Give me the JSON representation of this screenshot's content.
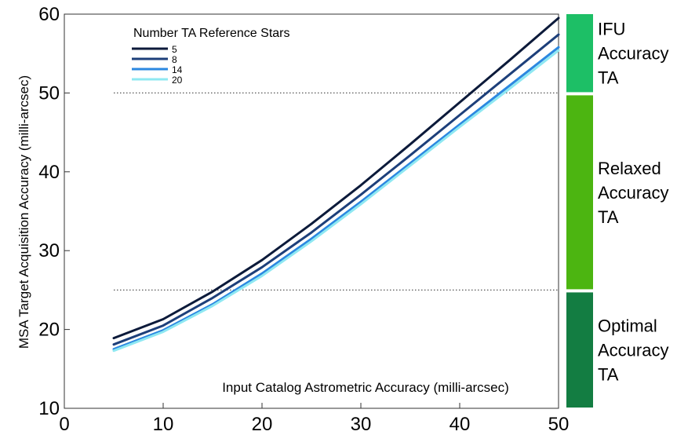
{
  "chart_data": {
    "type": "line",
    "xlabel": "Input Catalog Astrometric Accuracy (milli-arcsec)",
    "ylabel": "MSA Target Acquisition Accuracy (milli-arcsec)",
    "xlim": [
      0,
      50
    ],
    "ylim": [
      10,
      60
    ],
    "xticks": [
      0,
      10,
      20,
      30,
      40,
      50
    ],
    "yticks": [
      10,
      20,
      30,
      40,
      50,
      60
    ],
    "grid": false,
    "legend_title": "Number TA Reference Stars",
    "legend_position": "top-left",
    "x": [
      5,
      10,
      15,
      20,
      25,
      30,
      35,
      40,
      45,
      50
    ],
    "series": [
      {
        "name": "5",
        "color": "#0c1a3a",
        "values": [
          18.9,
          21.3,
          24.8,
          28.8,
          33.4,
          38.3,
          43.5,
          48.8,
          54.1,
          59.5
        ]
      },
      {
        "name": "8",
        "color": "#1d3f7a",
        "values": [
          18.1,
          20.5,
          24.0,
          27.9,
          32.3,
          37.1,
          42.1,
          47.2,
          52.3,
          57.4
        ]
      },
      {
        "name": "14",
        "color": "#2b88e0",
        "values": [
          17.5,
          19.9,
          23.2,
          27.1,
          31.5,
          36.2,
          41.1,
          46.0,
          50.9,
          55.8
        ]
      },
      {
        "name": "20",
        "color": "#8fe8f2",
        "values": [
          17.3,
          19.7,
          23.0,
          26.8,
          31.2,
          35.9,
          40.8,
          45.7,
          50.5,
          55.4
        ]
      }
    ],
    "reference_lines": [
      {
        "y": 50,
        "style": "dotted"
      },
      {
        "y": 25,
        "style": "dotted"
      }
    ],
    "bands": [
      {
        "lines": [
          "IFU",
          "Accuracy",
          "TA"
        ],
        "color": "#1dbf66",
        "y_from": 50,
        "y_to": 60
      },
      {
        "lines": [
          "Relaxed",
          "Accuracy",
          "TA"
        ],
        "color": "#4cb511",
        "y_from": 25,
        "y_to": 50
      },
      {
        "lines": [
          "Optimal",
          "Accuracy",
          "TA"
        ],
        "color": "#137d42",
        "y_from": 10,
        "y_to": 25
      }
    ]
  }
}
